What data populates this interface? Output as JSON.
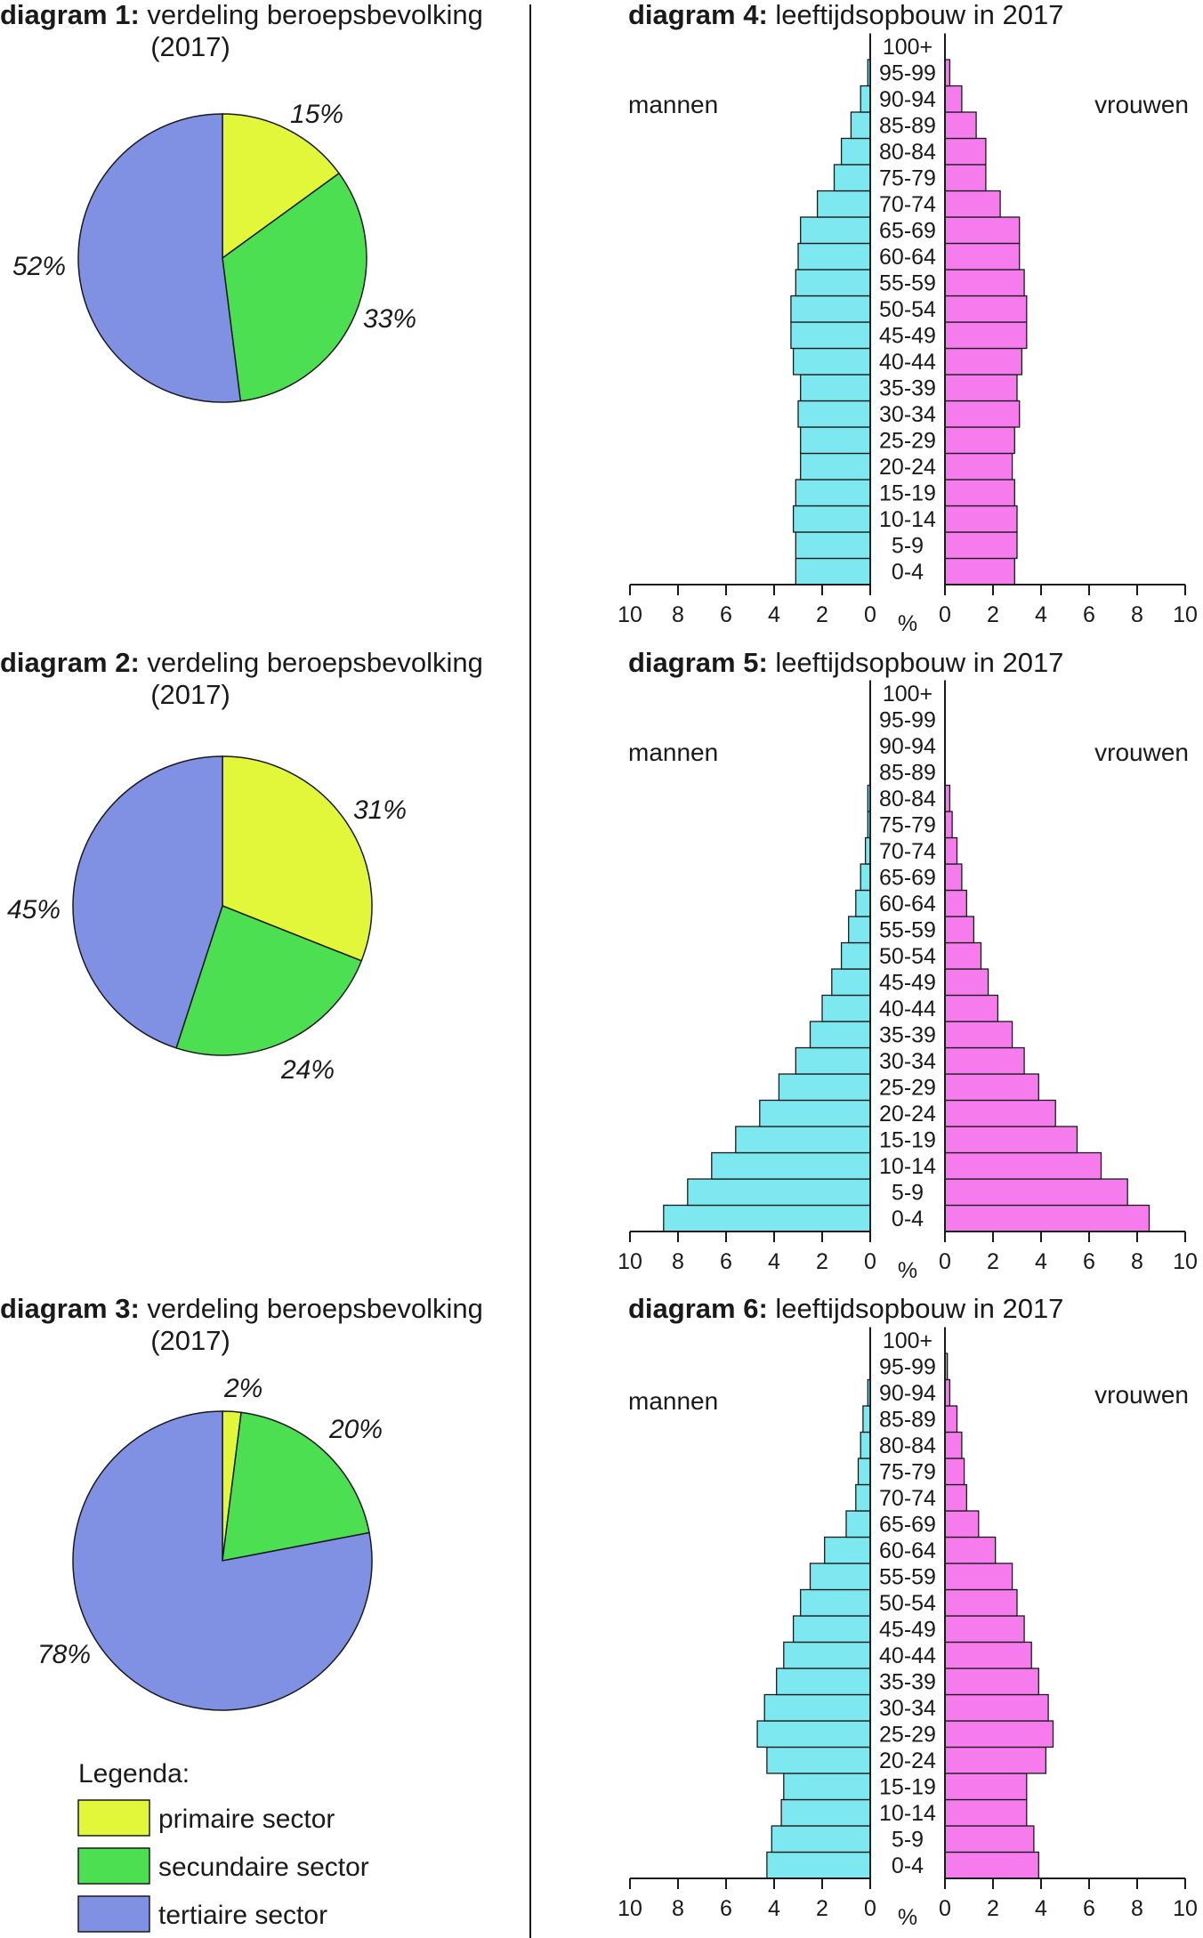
{
  "legend": {
    "title": "Legenda:",
    "items": [
      {
        "label": "primaire sector",
        "color": "#e3f73a"
      },
      {
        "label": "secundaire sector",
        "color": "#4ddf52"
      },
      {
        "label": "tertiaire sector",
        "color": "#8090e3"
      }
    ]
  },
  "colors": {
    "men": "#7de8ef",
    "women": "#f67cee",
    "line": "#1a1a1a"
  },
  "chart_data": [
    {
      "type": "pie",
      "title_bold": "diagram 1:",
      "title_rest": "verdeling beroepsbevolking",
      "title_line2": "(2017)",
      "categories": [
        "primaire sector",
        "secundaire sector",
        "tertiaire sector"
      ],
      "values": [
        15,
        33,
        52
      ],
      "value_labels": [
        "15%",
        "33%",
        "52%"
      ]
    },
    {
      "type": "pie",
      "title_bold": "diagram 2:",
      "title_rest": "verdeling beroepsbevolking",
      "title_line2": "(2017)",
      "categories": [
        "primaire sector",
        "secundaire sector",
        "tertiaire sector"
      ],
      "values": [
        31,
        24,
        45
      ],
      "value_labels": [
        "31%",
        "24%",
        "45%"
      ]
    },
    {
      "type": "pie",
      "title_bold": "diagram 3:",
      "title_rest": "verdeling beroepsbevolking",
      "title_line2": "(2017)",
      "categories": [
        "primaire sector",
        "secundaire sector",
        "tertiaire sector"
      ],
      "values": [
        2,
        20,
        78
      ],
      "value_labels": [
        "2%",
        "20%",
        "78%"
      ]
    },
    {
      "type": "bar",
      "subtype": "population-pyramid",
      "title_bold": "diagram 4:",
      "title_rest": "leeftijdsopbouw in 2017",
      "left_label": "mannen",
      "right_label": "vrouwen",
      "unit_label": "%",
      "categories": [
        "0-4",
        "5-9",
        "10-14",
        "15-19",
        "20-24",
        "25-29",
        "30-34",
        "35-39",
        "40-44",
        "45-49",
        "50-54",
        "55-59",
        "60-64",
        "65-69",
        "70-74",
        "75-79",
        "80-84",
        "85-89",
        "90-94",
        "95-99",
        "100+"
      ],
      "series": [
        {
          "name": "mannen",
          "values": [
            3.1,
            3.1,
            3.2,
            3.1,
            2.9,
            2.9,
            3.0,
            2.9,
            3.2,
            3.3,
            3.3,
            3.1,
            3.0,
            2.9,
            2.2,
            1.5,
            1.2,
            0.8,
            0.4,
            0.1,
            0.0
          ]
        },
        {
          "name": "vrouwen",
          "values": [
            2.9,
            3.0,
            3.0,
            2.9,
            2.8,
            2.9,
            3.1,
            3.0,
            3.2,
            3.4,
            3.4,
            3.3,
            3.1,
            3.1,
            2.3,
            1.7,
            1.7,
            1.3,
            0.7,
            0.2,
            0.0
          ]
        }
      ],
      "xlim": [
        0,
        10
      ],
      "tick_labels": [
        "10",
        "8",
        "6",
        "4",
        "2",
        "0"
      ]
    },
    {
      "type": "bar",
      "subtype": "population-pyramid",
      "title_bold": "diagram 5:",
      "title_rest": "leeftijdsopbouw in 2017",
      "left_label": "mannen",
      "right_label": "vrouwen",
      "unit_label": "%",
      "categories": [
        "0-4",
        "5-9",
        "10-14",
        "15-19",
        "20-24",
        "25-29",
        "30-34",
        "35-39",
        "40-44",
        "45-49",
        "50-54",
        "55-59",
        "60-64",
        "65-69",
        "70-74",
        "75-79",
        "80-84",
        "85-89",
        "90-94",
        "95-99",
        "100+"
      ],
      "series": [
        {
          "name": "mannen",
          "values": [
            8.6,
            7.6,
            6.6,
            5.6,
            4.6,
            3.8,
            3.1,
            2.5,
            2.0,
            1.6,
            1.2,
            0.9,
            0.6,
            0.4,
            0.2,
            0.1,
            0.1,
            0.0,
            0.0,
            0.0,
            0.0
          ]
        },
        {
          "name": "vrouwen",
          "values": [
            8.5,
            7.6,
            6.5,
            5.5,
            4.6,
            3.9,
            3.3,
            2.8,
            2.2,
            1.8,
            1.5,
            1.2,
            0.9,
            0.7,
            0.5,
            0.3,
            0.2,
            0.0,
            0.0,
            0.0,
            0.0
          ]
        }
      ],
      "xlim": [
        0,
        10
      ],
      "tick_labels": [
        "10",
        "8",
        "6",
        "4",
        "2",
        "0"
      ]
    },
    {
      "type": "bar",
      "subtype": "population-pyramid",
      "title_bold": "diagram 6:",
      "title_rest": "leeftijdsopbouw in 2017",
      "left_label": "mannen",
      "right_label": "vrouwen",
      "unit_label": "%",
      "categories": [
        "0-4",
        "5-9",
        "10-14",
        "15-19",
        "20-24",
        "25-29",
        "30-34",
        "35-39",
        "40-44",
        "45-49",
        "50-54",
        "55-59",
        "60-64",
        "65-69",
        "70-74",
        "75-79",
        "80-84",
        "85-89",
        "90-94",
        "95-99",
        "100+"
      ],
      "series": [
        {
          "name": "mannen",
          "values": [
            4.3,
            4.1,
            3.7,
            3.6,
            4.3,
            4.7,
            4.4,
            3.9,
            3.6,
            3.2,
            2.9,
            2.5,
            1.9,
            1.0,
            0.6,
            0.5,
            0.4,
            0.3,
            0.1,
            0.0,
            0.0
          ]
        },
        {
          "name": "vrouwen",
          "values": [
            3.9,
            3.7,
            3.4,
            3.4,
            4.2,
            4.5,
            4.3,
            3.9,
            3.6,
            3.3,
            3.0,
            2.8,
            2.1,
            1.4,
            0.9,
            0.8,
            0.7,
            0.5,
            0.2,
            0.1,
            0.0
          ]
        }
      ],
      "xlim": [
        0,
        10
      ],
      "tick_labels": [
        "10",
        "8",
        "6",
        "4",
        "2",
        "0"
      ]
    }
  ]
}
